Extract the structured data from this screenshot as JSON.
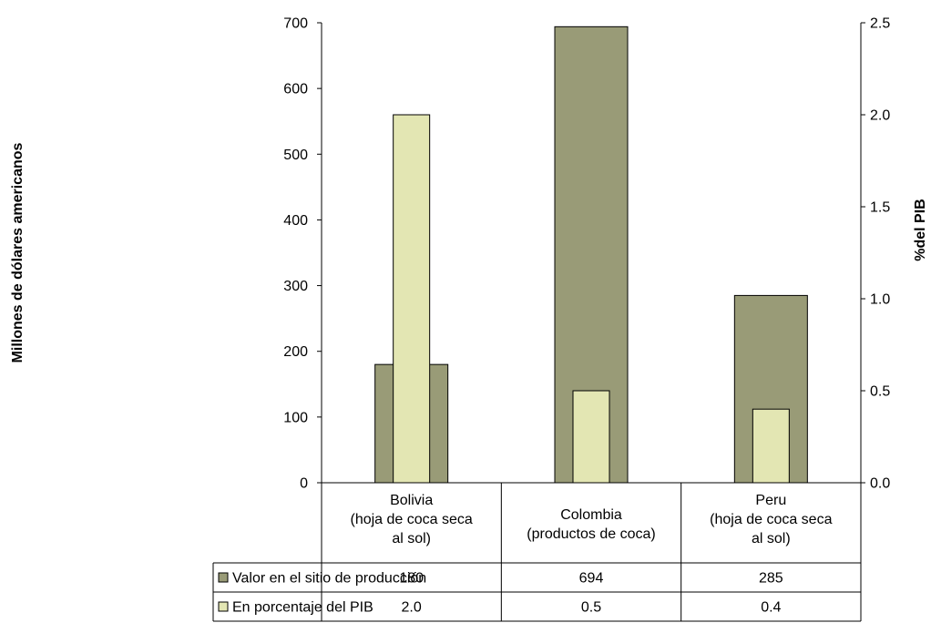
{
  "chart_data": {
    "type": "bar",
    "categories": [
      [
        "Bolivia",
        "(hoja de coca seca",
        "al sol)"
      ],
      [
        "Colombia",
        "(productos de coca)"
      ],
      [
        "Peru",
        "(hoja de coca seca",
        "al sol)"
      ]
    ],
    "series": [
      {
        "name": "Valor en el sitio de producción",
        "axis": "left",
        "color": "#999b77",
        "values": [
          180,
          694,
          285
        ],
        "table_values": [
          "180",
          "694",
          "285"
        ]
      },
      {
        "name": "En porcentaje del PIB",
        "axis": "right",
        "color": "#e3e6b3",
        "values": [
          2.0,
          0.5,
          0.4
        ],
        "table_values": [
          "2.0",
          "0.5",
          "0.4"
        ]
      }
    ],
    "y_left": {
      "label": "Millones de dólares americanos",
      "ylim": [
        0,
        700
      ],
      "ticks": [
        "0",
        "100",
        "200",
        "300",
        "400",
        "500",
        "600",
        "700"
      ]
    },
    "y_right": {
      "label": "%del PIB",
      "ylim": [
        0,
        2.5
      ],
      "ticks": [
        "0.0",
        "0.5",
        "1.0",
        "1.5",
        "2.0",
        "2.5"
      ]
    },
    "grid": false,
    "legend": "data-table-below"
  }
}
